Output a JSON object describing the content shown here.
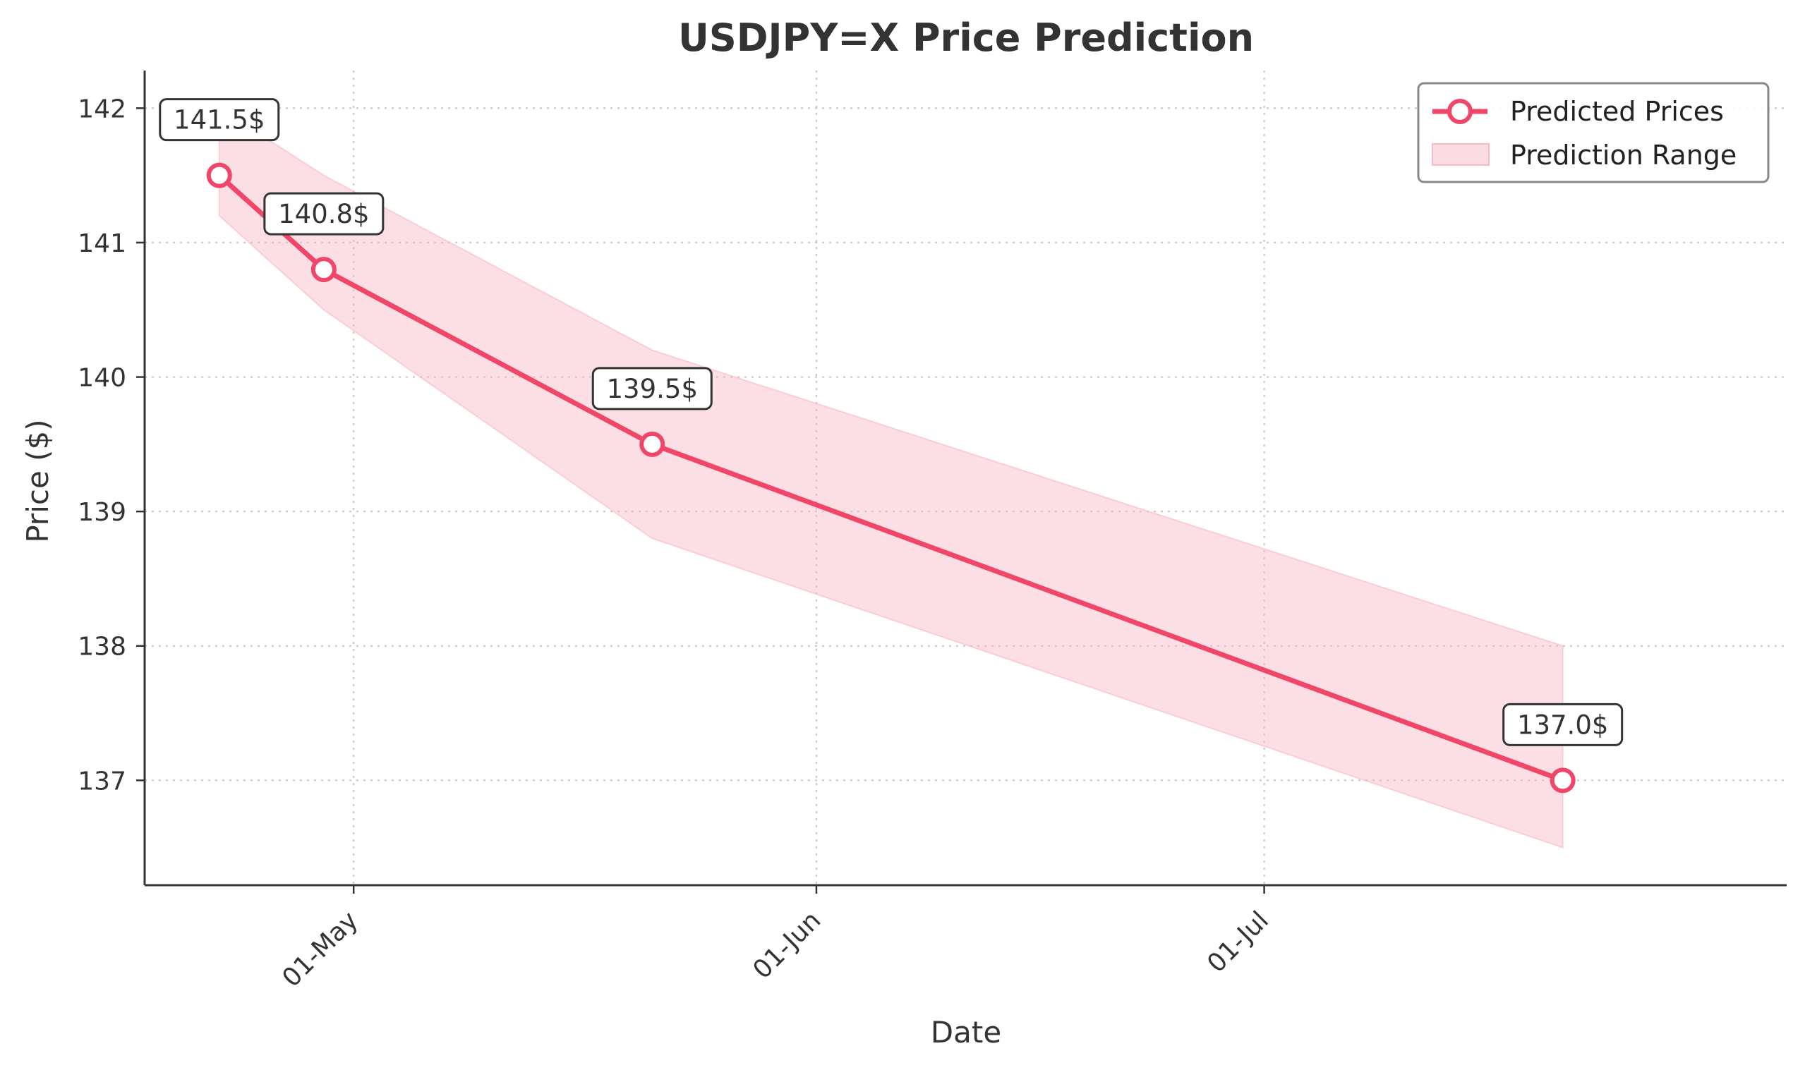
{
  "chart_data": {
    "type": "line",
    "title": "USDJPY=X Price Prediction",
    "xlabel": "Date",
    "ylabel": "Price ($)",
    "x_ticks": [
      {
        "date": "2025-05-01",
        "label": "01-May"
      },
      {
        "date": "2025-06-01",
        "label": "01-Jun"
      },
      {
        "date": "2025-07-01",
        "label": "01-Jul"
      }
    ],
    "y_ticks": [
      137,
      138,
      139,
      140,
      141,
      142
    ],
    "xlim": [
      "2025-04-17",
      "2025-08-05"
    ],
    "ylim": [
      136.22,
      142.28
    ],
    "grid": true,
    "legend_position": "top-right",
    "series": [
      {
        "name": "Predicted Prices",
        "color": "#f0466a",
        "points": [
          {
            "date": "2025-04-22",
            "value": 141.5,
            "label": "141.5$"
          },
          {
            "date": "2025-04-29",
            "value": 140.8,
            "label": "140.8$"
          },
          {
            "date": "2025-05-21",
            "value": 139.5,
            "label": "139.5$"
          },
          {
            "date": "2025-07-21",
            "value": 137.0,
            "label": "137.0$"
          }
        ]
      }
    ],
    "range": {
      "name": "Prediction Range",
      "color": "#f8b9c6",
      "points": [
        {
          "date": "2025-04-22",
          "lower": 141.2,
          "upper": 142.0
        },
        {
          "date": "2025-04-29",
          "lower": 140.5,
          "upper": 141.5
        },
        {
          "date": "2025-05-21",
          "lower": 138.8,
          "upper": 140.2
        },
        {
          "date": "2025-07-21",
          "lower": 136.5,
          "upper": 138.0
        }
      ]
    }
  }
}
